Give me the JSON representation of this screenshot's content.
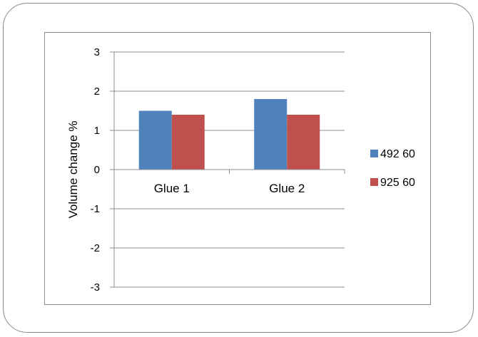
{
  "chart_data": {
    "type": "bar",
    "categories": [
      "Glue 1",
      "Glue 2"
    ],
    "series": [
      {
        "name": "492 60",
        "values": [
          1.5,
          1.8
        ],
        "color": "#4f81bd"
      },
      {
        "name": "925 60",
        "values": [
          1.4,
          1.4
        ],
        "color": "#c0504d"
      }
    ],
    "ylabel": "Volume change %",
    "ylim": [
      -3,
      3
    ],
    "yticks": [
      -3,
      -2,
      -1,
      0,
      1,
      2,
      3
    ],
    "grid": true,
    "legend": "right"
  }
}
